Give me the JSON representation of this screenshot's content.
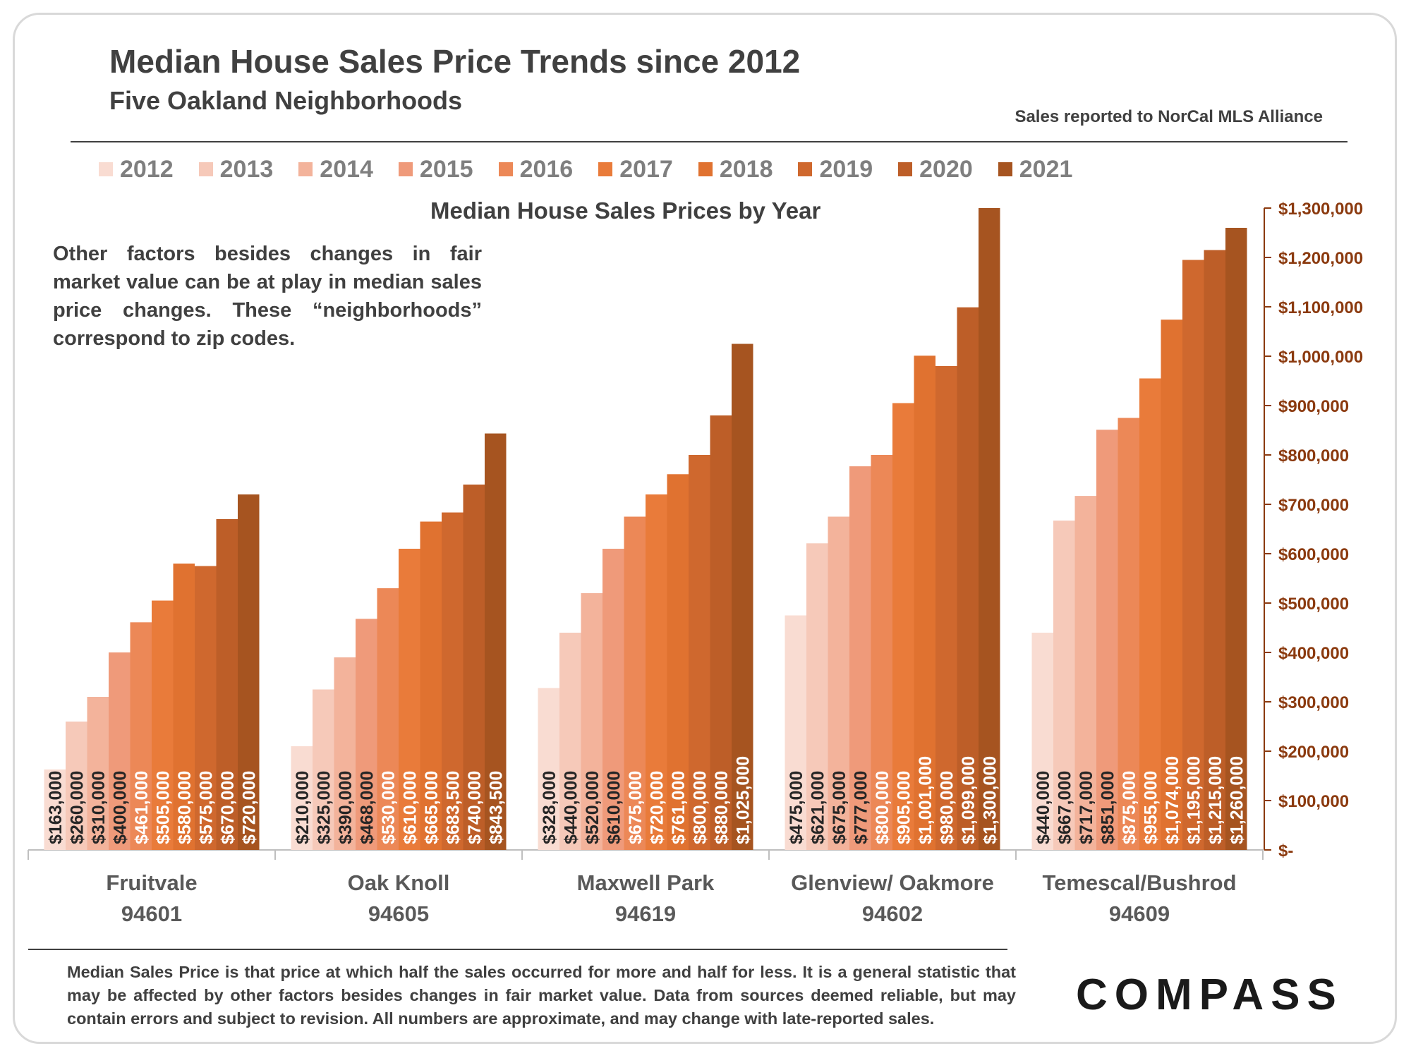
{
  "header": {
    "title": "Median House Sales Price Trends since 2012",
    "subtitle": "Five Oakland Neighborhoods",
    "source": "Sales reported to NorCal MLS Alliance"
  },
  "note": "Other factors besides changes in fair market value can be at play in median sales price changes. These “neighborhoods” correspond to zip codes.",
  "footer": "Median Sales Price is that price at which half the sales occurred for more and half for less. It is a general statistic that may be affected by other factors besides changes in fair market value. Data from sources deemed reliable, but may contain errors and subject to revision.  All numbers are approximate, and may change with late-reported sales.",
  "logo": "COMPASS",
  "chart_data": {
    "type": "bar",
    "title": "Median House Sales Prices by Year",
    "legend_position": "top",
    "y_axis_side": "right",
    "ylim": [
      0,
      1300000
    ],
    "y_ticks": [
      0,
      100000,
      200000,
      300000,
      400000,
      500000,
      600000,
      700000,
      800000,
      900000,
      1000000,
      1100000,
      1200000,
      1300000
    ],
    "y_tick_labels": [
      "$-",
      "$100,000",
      "$200,000",
      "$300,000",
      "$400,000",
      "$500,000",
      "$600,000",
      "$700,000",
      "$800,000",
      "$900,000",
      "$1,000,000",
      "$1,100,000",
      "$1,200,000",
      "$1,300,000"
    ],
    "categories": [
      {
        "name": "Fruitvale",
        "zip": "94601"
      },
      {
        "name": "Oak Knoll",
        "zip": "94605"
      },
      {
        "name": "Maxwell Park",
        "zip": "94619"
      },
      {
        "name": "Glenview/ Oakmore",
        "zip": "94602"
      },
      {
        "name": "Temescal/Bushrod",
        "zip": "94609"
      }
    ],
    "series": [
      {
        "name": "2012",
        "color": "#f9dcd2",
        "values": [
          163000,
          210000,
          328000,
          475000,
          440000
        ],
        "labels": [
          "$163,000",
          "$210,000",
          "$328,000",
          "$475,000",
          "$440,000"
        ]
      },
      {
        "name": "2013",
        "color": "#f6c9b9",
        "values": [
          260000,
          325000,
          440000,
          621000,
          667000
        ],
        "labels": [
          "$260,000",
          "$325,000",
          "$440,000",
          "$621,000",
          "$667,000"
        ]
      },
      {
        "name": "2014",
        "color": "#f3b39b",
        "values": [
          310000,
          390000,
          520000,
          675000,
          717000
        ],
        "labels": [
          "$310,000",
          "$390,000",
          "$520,000",
          "$675,000",
          "$717,000"
        ]
      },
      {
        "name": "2015",
        "color": "#ef9a7a",
        "values": [
          400000,
          468000,
          610000,
          777000,
          851000
        ],
        "labels": [
          "$400,000",
          "$468,000",
          "$610,000",
          "$777,000",
          "$851,000"
        ]
      },
      {
        "name": "2016",
        "color": "#ec8857",
        "values": [
          461000,
          530000,
          675000,
          800000,
          875000
        ],
        "labels": [
          "$461,000",
          "$530,000",
          "$675,000",
          "$800,000",
          "$875,000"
        ]
      },
      {
        "name": "2017",
        "color": "#e97b3a",
        "values": [
          505000,
          610000,
          720000,
          905000,
          955000
        ],
        "labels": [
          "$505,000",
          "$610,000",
          "$720,000",
          "$905,000",
          "$955,000"
        ]
      },
      {
        "name": "2018",
        "color": "#e07230",
        "values": [
          580000,
          665000,
          761000,
          1001000,
          1074000
        ],
        "labels": [
          "$580,000",
          "$665,000",
          "$761,000",
          "$1,001,000",
          "$1,074,000"
        ]
      },
      {
        "name": "2019",
        "color": "#cf682e",
        "values": [
          575000,
          683500,
          800000,
          980000,
          1195000
        ],
        "labels": [
          "$575,000",
          "$683,500",
          "$800,000",
          "$980,000",
          "$1,195,000"
        ]
      },
      {
        "name": "2020",
        "color": "#bd5e28",
        "values": [
          670000,
          740000,
          880000,
          1099000,
          1215000
        ],
        "labels": [
          "$670,000",
          "$740,000",
          "$880,000",
          "$1,099,000",
          "$1,215,000"
        ]
      },
      {
        "name": "2021",
        "color": "#a65420",
        "values": [
          720000,
          843500,
          1025000,
          1300000,
          1260000
        ],
        "labels": [
          "$720,000",
          "$843,500",
          "$1,025,000",
          "$1,300,000",
          "$1,260,000"
        ]
      }
    ],
    "colors": {
      "axis_label": "#8b3a0f",
      "category_label": "#595959",
      "data_label_light": "#262626",
      "data_label_dark": "#ffffff"
    }
  }
}
